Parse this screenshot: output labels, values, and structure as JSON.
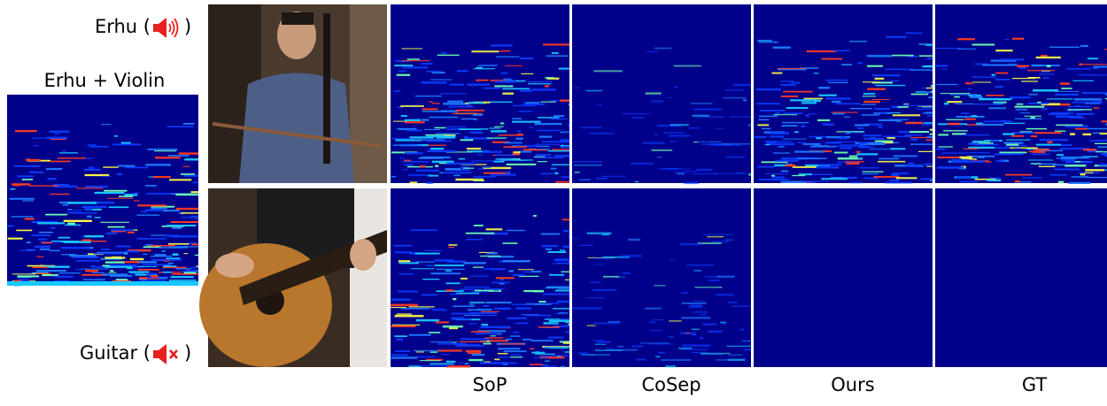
{
  "labels": {
    "top_prefix": "Erhu (",
    "top_suffix": ")",
    "mixture": "Erhu + Violin",
    "bottom_prefix": "Guitar (",
    "bottom_suffix": ")"
  },
  "columns": [
    "SoP",
    "CoSep",
    "Ours",
    "GT"
  ]
}
